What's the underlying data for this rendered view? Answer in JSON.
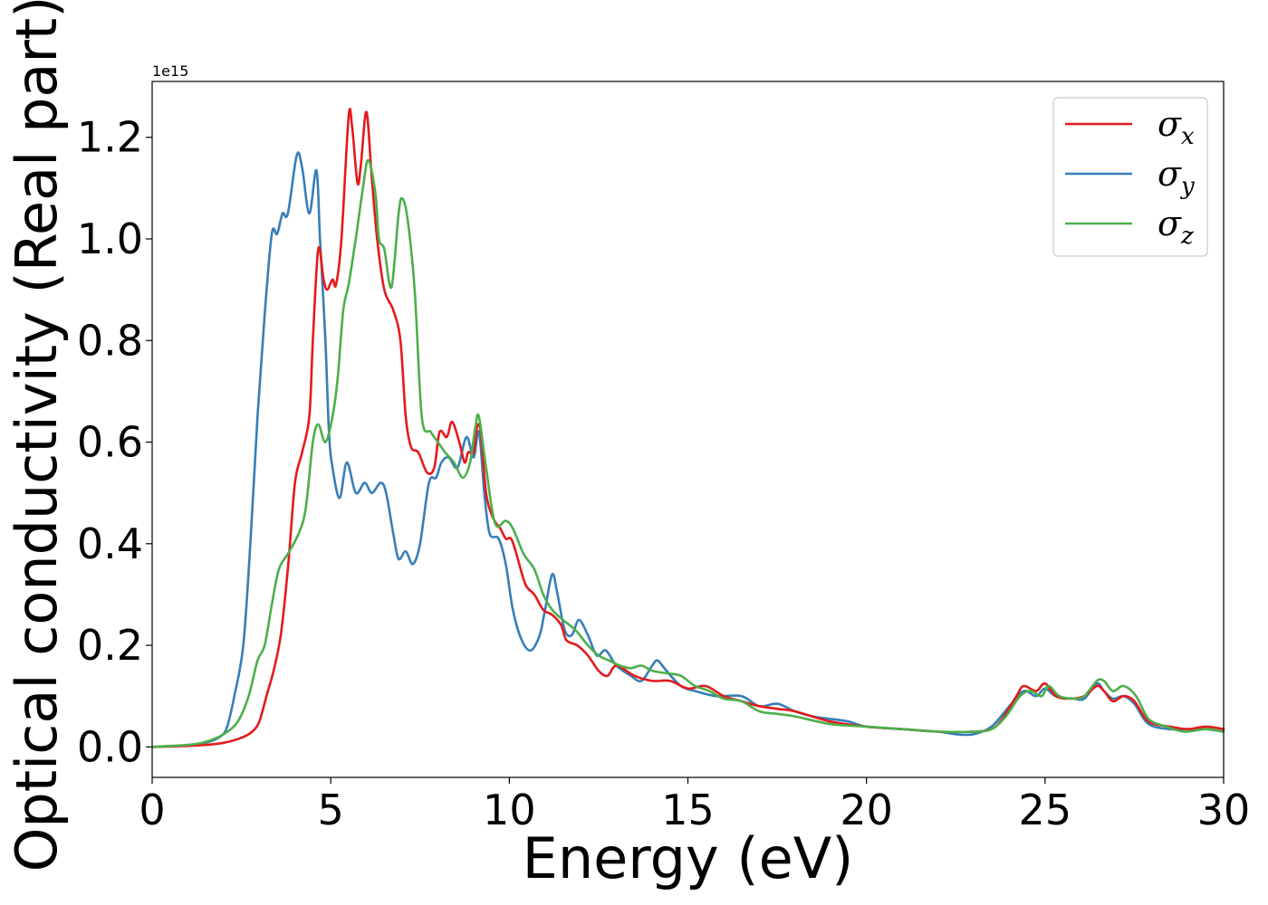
{
  "chart_data": {
    "type": "line",
    "xlabel": "Energy (eV)",
    "ylabel": "Optical conductivity (Real part)",
    "y_offset_label": "1e15",
    "xlim": [
      0,
      30
    ],
    "ylim": [
      -0.06,
      1.31
    ],
    "x_ticks": [
      0,
      5,
      10,
      15,
      20,
      25,
      30
    ],
    "x_tick_labels": [
      "0",
      "5",
      "10",
      "15",
      "20",
      "25",
      "30"
    ],
    "y_ticks": [
      0.0,
      0.2,
      0.4,
      0.6,
      0.8,
      1.0,
      1.2
    ],
    "y_tick_labels": [
      "0.0",
      "0.2",
      "0.4",
      "0.6",
      "0.8",
      "1.0",
      "1.2"
    ],
    "grid": false,
    "legend_position": "top-right",
    "series": [
      {
        "name": "σx",
        "legend_base": "σ",
        "legend_sub": "x",
        "color": "#e41a1c",
        "points": [
          [
            0,
            0
          ],
          [
            1,
            0.002
          ],
          [
            1.5,
            0.004
          ],
          [
            2,
            0.008
          ],
          [
            2.5,
            0.018
          ],
          [
            2.8,
            0.03
          ],
          [
            3,
            0.05
          ],
          [
            3.2,
            0.1
          ],
          [
            3.4,
            0.15
          ],
          [
            3.6,
            0.22
          ],
          [
            3.8,
            0.35
          ],
          [
            4,
            0.52
          ],
          [
            4.2,
            0.58
          ],
          [
            4.4,
            0.65
          ],
          [
            4.5,
            0.8
          ],
          [
            4.65,
            0.98
          ],
          [
            4.8,
            0.92
          ],
          [
            4.9,
            0.9
          ],
          [
            5.05,
            0.92
          ],
          [
            5.15,
            0.91
          ],
          [
            5.3,
            1.0
          ],
          [
            5.5,
            1.24
          ],
          [
            5.6,
            1.22
          ],
          [
            5.75,
            1.11
          ],
          [
            5.85,
            1.15
          ],
          [
            6,
            1.25
          ],
          [
            6.15,
            1.12
          ],
          [
            6.3,
            1.0
          ],
          [
            6.5,
            0.9
          ],
          [
            6.75,
            0.86
          ],
          [
            6.95,
            0.8
          ],
          [
            7.1,
            0.65
          ],
          [
            7.25,
            0.59
          ],
          [
            7.45,
            0.58
          ],
          [
            7.7,
            0.54
          ],
          [
            7.9,
            0.55
          ],
          [
            8.05,
            0.62
          ],
          [
            8.25,
            0.61
          ],
          [
            8.4,
            0.64
          ],
          [
            8.6,
            0.6
          ],
          [
            8.75,
            0.56
          ],
          [
            8.85,
            0.58
          ],
          [
            9,
            0.58
          ],
          [
            9.1,
            0.63
          ],
          [
            9.2,
            0.62
          ],
          [
            9.35,
            0.5
          ],
          [
            9.55,
            0.45
          ],
          [
            9.75,
            0.43
          ],
          [
            9.9,
            0.41
          ],
          [
            10.05,
            0.41
          ],
          [
            10.2,
            0.38
          ],
          [
            10.45,
            0.32
          ],
          [
            10.7,
            0.3
          ],
          [
            10.95,
            0.27
          ],
          [
            11.2,
            0.26
          ],
          [
            11.45,
            0.24
          ],
          [
            11.6,
            0.21
          ],
          [
            11.9,
            0.2
          ],
          [
            12.2,
            0.18
          ],
          [
            12.5,
            0.15
          ],
          [
            12.75,
            0.14
          ],
          [
            13,
            0.16
          ],
          [
            13.5,
            0.14
          ],
          [
            14,
            0.13
          ],
          [
            14.5,
            0.13
          ],
          [
            15,
            0.115
          ],
          [
            15.5,
            0.12
          ],
          [
            16,
            0.1
          ],
          [
            16.5,
            0.09
          ],
          [
            17,
            0.08
          ],
          [
            17.5,
            0.075
          ],
          [
            18,
            0.07
          ],
          [
            19,
            0.05
          ],
          [
            20,
            0.04
          ],
          [
            21,
            0.035
          ],
          [
            22,
            0.03
          ],
          [
            23,
            0.03
          ],
          [
            23.5,
            0.035
          ],
          [
            23.8,
            0.055
          ],
          [
            24.2,
            0.1
          ],
          [
            24.4,
            0.12
          ],
          [
            24.75,
            0.11
          ],
          [
            25,
            0.125
          ],
          [
            25.3,
            0.1
          ],
          [
            25.7,
            0.095
          ],
          [
            26.1,
            0.1
          ],
          [
            26.45,
            0.12
          ],
          [
            26.65,
            0.11
          ],
          [
            26.9,
            0.09
          ],
          [
            27.2,
            0.1
          ],
          [
            27.5,
            0.09
          ],
          [
            27.9,
            0.05
          ],
          [
            28.5,
            0.04
          ],
          [
            29,
            0.035
          ],
          [
            29.5,
            0.04
          ],
          [
            30,
            0.035
          ]
        ]
      },
      {
        "name": "σy",
        "legend_base": "σ",
        "legend_sub": "y",
        "color": "#377eb8",
        "points": [
          [
            0,
            0
          ],
          [
            1,
            0.003
          ],
          [
            1.5,
            0.008
          ],
          [
            1.9,
            0.02
          ],
          [
            2.1,
            0.04
          ],
          [
            2.3,
            0.1
          ],
          [
            2.55,
            0.2
          ],
          [
            2.75,
            0.4
          ],
          [
            2.95,
            0.65
          ],
          [
            3.15,
            0.85
          ],
          [
            3.35,
            1.01
          ],
          [
            3.5,
            1.01
          ],
          [
            3.65,
            1.05
          ],
          [
            3.8,
            1.05
          ],
          [
            4.05,
            1.165
          ],
          [
            4.2,
            1.14
          ],
          [
            4.4,
            1.05
          ],
          [
            4.6,
            1.135
          ],
          [
            4.7,
            1.0
          ],
          [
            4.85,
            0.8
          ],
          [
            4.95,
            0.62
          ],
          [
            5.05,
            0.55
          ],
          [
            5.25,
            0.49
          ],
          [
            5.45,
            0.56
          ],
          [
            5.7,
            0.5
          ],
          [
            5.95,
            0.52
          ],
          [
            6.15,
            0.5
          ],
          [
            6.4,
            0.52
          ],
          [
            6.55,
            0.5
          ],
          [
            6.75,
            0.42
          ],
          [
            6.9,
            0.37
          ],
          [
            7.1,
            0.385
          ],
          [
            7.3,
            0.36
          ],
          [
            7.5,
            0.4
          ],
          [
            7.75,
            0.52
          ],
          [
            7.95,
            0.53
          ],
          [
            8.1,
            0.56
          ],
          [
            8.3,
            0.57
          ],
          [
            8.55,
            0.55
          ],
          [
            8.8,
            0.61
          ],
          [
            9,
            0.57
          ],
          [
            9.15,
            0.62
          ],
          [
            9.3,
            0.5
          ],
          [
            9.45,
            0.42
          ],
          [
            9.7,
            0.41
          ],
          [
            9.9,
            0.36
          ],
          [
            10.1,
            0.27
          ],
          [
            10.35,
            0.21
          ],
          [
            10.6,
            0.19
          ],
          [
            10.85,
            0.22
          ],
          [
            11,
            0.27
          ],
          [
            11.2,
            0.34
          ],
          [
            11.35,
            0.3
          ],
          [
            11.55,
            0.23
          ],
          [
            11.75,
            0.22
          ],
          [
            11.95,
            0.25
          ],
          [
            12.2,
            0.22
          ],
          [
            12.45,
            0.18
          ],
          [
            12.7,
            0.19
          ],
          [
            13,
            0.16
          ],
          [
            13.4,
            0.14
          ],
          [
            13.7,
            0.13
          ],
          [
            14,
            0.16
          ],
          [
            14.15,
            0.17
          ],
          [
            14.4,
            0.15
          ],
          [
            14.8,
            0.12
          ],
          [
            15.2,
            0.11
          ],
          [
            15.8,
            0.1
          ],
          [
            16.5,
            0.1
          ],
          [
            17,
            0.08
          ],
          [
            17.5,
            0.085
          ],
          [
            18,
            0.07
          ],
          [
            18.5,
            0.06
          ],
          [
            19,
            0.055
          ],
          [
            19.5,
            0.05
          ],
          [
            20,
            0.04
          ],
          [
            21,
            0.035
          ],
          [
            22,
            0.03
          ],
          [
            22.5,
            0.025
          ],
          [
            23,
            0.025
          ],
          [
            23.5,
            0.04
          ],
          [
            24,
            0.08
          ],
          [
            24.4,
            0.11
          ],
          [
            24.75,
            0.1
          ],
          [
            25,
            0.115
          ],
          [
            25.3,
            0.1
          ],
          [
            25.8,
            0.095
          ],
          [
            26.1,
            0.095
          ],
          [
            26.45,
            0.125
          ],
          [
            26.65,
            0.11
          ],
          [
            26.9,
            0.095
          ],
          [
            27.2,
            0.1
          ],
          [
            27.5,
            0.085
          ],
          [
            27.9,
            0.045
          ],
          [
            28.5,
            0.035
          ],
          [
            29,
            0.035
          ],
          [
            29.5,
            0.035
          ],
          [
            30,
            0.03
          ]
        ]
      },
      {
        "name": "σz",
        "legend_base": "σ",
        "legend_sub": "z",
        "color": "#4daf4a",
        "points": [
          [
            0,
            0
          ],
          [
            1,
            0.004
          ],
          [
            1.5,
            0.01
          ],
          [
            2,
            0.025
          ],
          [
            2.4,
            0.05
          ],
          [
            2.7,
            0.1
          ],
          [
            2.95,
            0.17
          ],
          [
            3.15,
            0.2
          ],
          [
            3.35,
            0.28
          ],
          [
            3.55,
            0.35
          ],
          [
            3.8,
            0.38
          ],
          [
            4.1,
            0.42
          ],
          [
            4.3,
            0.47
          ],
          [
            4.5,
            0.6
          ],
          [
            4.65,
            0.635
          ],
          [
            4.85,
            0.6
          ],
          [
            5.05,
            0.65
          ],
          [
            5.2,
            0.73
          ],
          [
            5.35,
            0.86
          ],
          [
            5.5,
            0.91
          ],
          [
            5.7,
            1.0
          ],
          [
            5.9,
            1.1
          ],
          [
            6.05,
            1.155
          ],
          [
            6.25,
            1.09
          ],
          [
            6.35,
            1.0
          ],
          [
            6.5,
            0.98
          ],
          [
            6.7,
            0.905
          ],
          [
            6.9,
            1.05
          ],
          [
            7,
            1.08
          ],
          [
            7.15,
            1.04
          ],
          [
            7.35,
            0.9
          ],
          [
            7.55,
            0.65
          ],
          [
            7.8,
            0.62
          ],
          [
            8,
            0.6
          ],
          [
            8.2,
            0.58
          ],
          [
            8.45,
            0.56
          ],
          [
            8.7,
            0.53
          ],
          [
            8.9,
            0.56
          ],
          [
            9.05,
            0.63
          ],
          [
            9.15,
            0.65
          ],
          [
            9.35,
            0.55
          ],
          [
            9.6,
            0.44
          ],
          [
            9.9,
            0.445
          ],
          [
            10.1,
            0.43
          ],
          [
            10.4,
            0.38
          ],
          [
            10.7,
            0.35
          ],
          [
            10.95,
            0.3
          ],
          [
            11.2,
            0.27
          ],
          [
            11.5,
            0.25
          ],
          [
            11.85,
            0.23
          ],
          [
            12.2,
            0.2
          ],
          [
            12.5,
            0.18
          ],
          [
            12.8,
            0.17
          ],
          [
            13.1,
            0.16
          ],
          [
            13.4,
            0.155
          ],
          [
            13.7,
            0.16
          ],
          [
            14,
            0.15
          ],
          [
            14.4,
            0.145
          ],
          [
            14.8,
            0.14
          ],
          [
            15.2,
            0.12
          ],
          [
            15.6,
            0.11
          ],
          [
            16,
            0.095
          ],
          [
            16.5,
            0.09
          ],
          [
            17,
            0.07
          ],
          [
            17.5,
            0.065
          ],
          [
            18,
            0.06
          ],
          [
            19,
            0.045
          ],
          [
            20,
            0.04
          ],
          [
            21,
            0.035
          ],
          [
            22,
            0.03
          ],
          [
            23,
            0.03
          ],
          [
            23.5,
            0.035
          ],
          [
            23.9,
            0.06
          ],
          [
            24.3,
            0.1
          ],
          [
            24.6,
            0.11
          ],
          [
            24.9,
            0.1
          ],
          [
            25.1,
            0.12
          ],
          [
            25.4,
            0.1
          ],
          [
            25.8,
            0.095
          ],
          [
            26.1,
            0.1
          ],
          [
            26.45,
            0.13
          ],
          [
            26.65,
            0.13
          ],
          [
            26.9,
            0.11
          ],
          [
            27.2,
            0.12
          ],
          [
            27.55,
            0.1
          ],
          [
            27.9,
            0.055
          ],
          [
            28.4,
            0.04
          ],
          [
            28.9,
            0.03
          ],
          [
            29.5,
            0.035
          ],
          [
            30,
            0.03
          ]
        ]
      }
    ]
  }
}
